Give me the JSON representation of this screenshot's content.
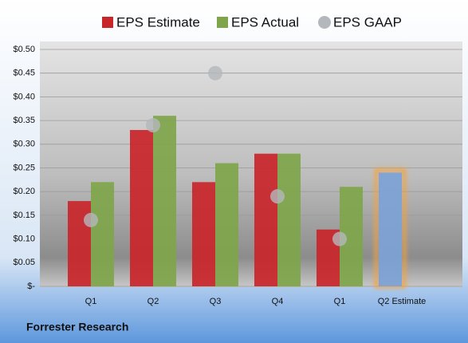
{
  "chart_data": {
    "type": "bar",
    "footer": "Forrester Research",
    "categories": [
      "Q1",
      "Q2",
      "Q3",
      "Q4",
      "Q1",
      "Q2 Estimate"
    ],
    "series": [
      {
        "name": "EPS Estimate",
        "color": "#c9262a",
        "values": [
          0.18,
          0.33,
          0.22,
          0.28,
          0.12,
          0.24
        ]
      },
      {
        "name": "EPS Actual",
        "color": "#7ea54a",
        "values": [
          0.22,
          0.36,
          0.26,
          0.28,
          0.21,
          null
        ]
      },
      {
        "name": "EPS GAAP",
        "color": "#b4b8bc",
        "marker": "circle",
        "values": [
          0.14,
          0.34,
          0.45,
          0.19,
          0.1,
          null
        ]
      }
    ],
    "highlight_color": "#7da2d6",
    "highlight_glow": "#f5a23a",
    "ylim": [
      0,
      0.5
    ],
    "yticks": [
      {
        "value": 0,
        "label": "$-"
      },
      {
        "value": 0.05,
        "label": "$0.05"
      },
      {
        "value": 0.1,
        "label": "$0.10"
      },
      {
        "value": 0.15,
        "label": "$0.15"
      },
      {
        "value": 0.2,
        "label": "$0.20"
      },
      {
        "value": 0.25,
        "label": "$0.25"
      },
      {
        "value": 0.3,
        "label": "$0.30"
      },
      {
        "value": 0.35,
        "label": "$0.35"
      },
      {
        "value": 0.4,
        "label": "$0.40"
      },
      {
        "value": 0.45,
        "label": "$0.45"
      },
      {
        "value": 0.5,
        "label": "$0.50"
      }
    ],
    "grid": true
  }
}
